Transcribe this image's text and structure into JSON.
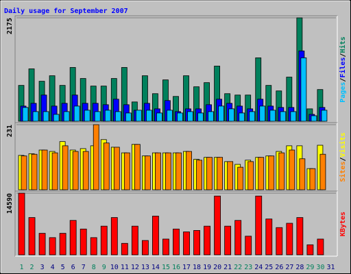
{
  "title": "Daily usage for September 2007",
  "chart_data": [
    {
      "type": "bar",
      "categories": [
        "1",
        "2",
        "3",
        "4",
        "5",
        "6",
        "7",
        "8",
        "9",
        "10",
        "11",
        "12",
        "13",
        "14",
        "15",
        "16",
        "17",
        "18",
        "19",
        "20",
        "21",
        "22",
        "23",
        "24",
        "25",
        "26",
        "27",
        "28",
        "29",
        "30",
        "31"
      ],
      "ylim": [
        0,
        2175
      ],
      "yticks": [
        2175
      ],
      "series": [
        {
          "name": "Hits",
          "color": "#00805c",
          "values": [
            754,
            1102,
            841,
            957,
            754,
            1131,
            899,
            740,
            740,
            899,
            1131,
            406,
            957,
            580,
            870,
            522,
            957,
            725,
            812,
            1160,
            580,
            551,
            551,
            1334,
            754,
            638,
            928,
            2175,
            261,
            667,
            null
          ]
        },
        {
          "name": "Files",
          "color": "#0000ff",
          "values": [
            319,
            377,
            551,
            319,
            377,
            551,
            377,
            377,
            348,
            464,
            348,
            232,
            377,
            261,
            435,
            203,
            261,
            261,
            348,
            464,
            377,
            319,
            261,
            464,
            319,
            290,
            290,
            1479,
            145,
            290,
            null
          ]
        },
        {
          "name": "Pages",
          "color": "#00c0ff",
          "values": [
            290,
            203,
            203,
            145,
            203,
            319,
            232,
            203,
            232,
            203,
            174,
            232,
            232,
            174,
            232,
            174,
            203,
            174,
            203,
            319,
            261,
            174,
            203,
            319,
            232,
            203,
            203,
            1334,
            116,
            232,
            null
          ]
        }
      ]
    },
    {
      "type": "bar",
      "categories": [
        "1",
        "2",
        "3",
        "4",
        "5",
        "6",
        "7",
        "8",
        "9",
        "10",
        "11",
        "12",
        "13",
        "14",
        "15",
        "16",
        "17",
        "18",
        "19",
        "20",
        "21",
        "22",
        "23",
        "24",
        "25",
        "26",
        "27",
        "28",
        "29",
        "30",
        "31"
      ],
      "ylim": [
        0,
        231
      ],
      "yticks": [
        231
      ],
      "series": [
        {
          "name": "Visits",
          "color": "#ffff00",
          "values": [
            122,
            128,
            141,
            136,
            171,
            141,
            146,
            156,
            178,
            151,
            131,
            161,
            120,
            131,
            131,
            131,
            136,
            108,
            115,
            115,
            100,
            90,
            105,
            115,
            120,
            136,
            156,
            156,
            75,
            158,
            null
          ]
        },
        {
          "name": "Sites",
          "color": "#ff8000",
          "values": [
            120,
            126,
            141,
            131,
            156,
            136,
            136,
            231,
            166,
            151,
            131,
            161,
            120,
            131,
            131,
            131,
            136,
            105,
            115,
            115,
            100,
            80,
            100,
            115,
            120,
            131,
            141,
            110,
            75,
            126,
            null
          ]
        }
      ]
    },
    {
      "type": "bar",
      "categories": [
        "1",
        "2",
        "3",
        "4",
        "5",
        "6",
        "7",
        "8",
        "9",
        "10",
        "11",
        "12",
        "13",
        "14",
        "15",
        "16",
        "17",
        "18",
        "19",
        "20",
        "21",
        "22",
        "23",
        "24",
        "25",
        "26",
        "27",
        "28",
        "29",
        "30",
        "31"
      ],
      "category_colors": [
        "#00805c",
        "#00805c",
        "#000080",
        "#000080",
        "#000080",
        "#000080",
        "#000080",
        "#00805c",
        "#00805c",
        "#000080",
        "#000080",
        "#000080",
        "#000080",
        "#000080",
        "#00805c",
        "#00805c",
        "#000080",
        "#000080",
        "#000080",
        "#000080",
        "#000080",
        "#00805c",
        "#00805c",
        "#000080",
        "#000080",
        "#000080",
        "#000080",
        "#000080",
        "#00805c",
        "#00805c",
        "#000080"
      ],
      "ylim": [
        0,
        14590
      ],
      "yticks": [
        14590
      ],
      "series": [
        {
          "name": "KBytes",
          "color": "#ff0000",
          "values": [
            14590,
            8822,
            5090,
            4072,
            5090,
            8143,
            6107,
            4072,
            6786,
            8822,
            2714,
            6786,
            3393,
            9161,
            3732,
            6107,
            5429,
            5768,
            6786,
            13911,
            6786,
            8143,
            4411,
            13911,
            8483,
            6447,
            7465,
            8822,
            2375,
            3732,
            null
          ]
        }
      ]
    }
  ]
}
